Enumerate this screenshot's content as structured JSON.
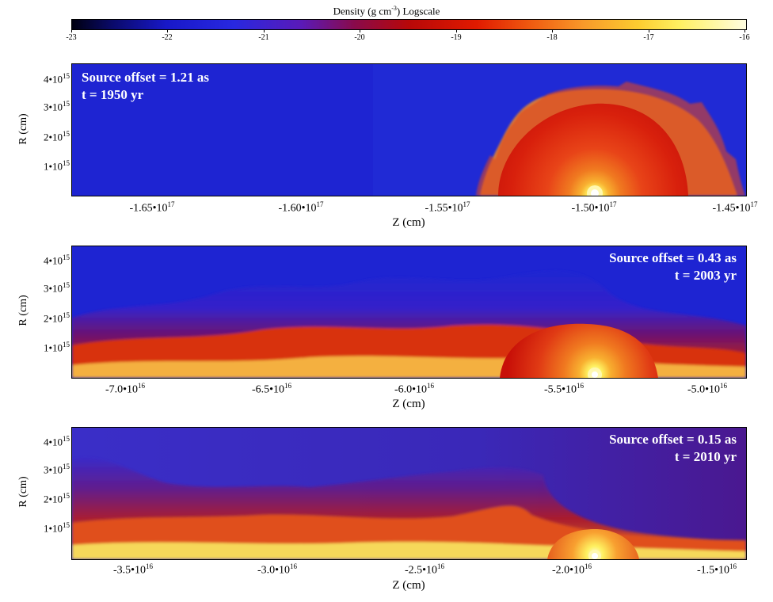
{
  "colorbar": {
    "title_main": "Density (g cm",
    "title_exp": "-3",
    "title_end": ") Logscale",
    "labels": [
      "-23",
      "-22",
      "-21",
      "-20",
      "-19",
      "-18",
      "-17",
      "-16"
    ]
  },
  "panels": [
    {
      "annotation_line1": "Source offset = 1.21 as",
      "annotation_line2": "t = 1950 yr",
      "annotation_align": "left",
      "ylabel": "R (cm)",
      "yticks": [
        "4•10",
        "3•10",
        "2•10",
        "1•10"
      ],
      "ytick_exp": "15",
      "xticks": [
        "-1.65•10",
        "-1.60•10",
        "-1.55•10",
        "-1.50•10",
        "-1.45•10"
      ],
      "xtick_exp": "17",
      "xlabel": "Z (cm)"
    },
    {
      "annotation_line1": "Source offset = 0.43 as",
      "annotation_line2": "t = 2003 yr",
      "annotation_align": "right",
      "ylabel": "R (cm)",
      "yticks": [
        "4•10",
        "3•10",
        "2•10",
        "1•10"
      ],
      "ytick_exp": "15",
      "xticks": [
        "-7.0•10",
        "-6.5•10",
        "-6.0•10",
        "-5.5•10",
        "-5.0•10"
      ],
      "xtick_exp": "16",
      "xlabel": "Z (cm)"
    },
    {
      "annotation_line1": "Source offset = 0.15 as",
      "annotation_line2": "t = 2010 yr",
      "annotation_align": "right",
      "ylabel": "R (cm)",
      "yticks": [
        "4•10",
        "3•10",
        "2•10",
        "1•10"
      ],
      "ytick_exp": "15",
      "xticks": [
        "-3.5•10",
        "-3.0•10",
        "-2.5•10",
        "-2.0•10",
        "-1.5•10"
      ],
      "xtick_exp": "16",
      "xlabel": "Z (cm)"
    }
  ]
}
